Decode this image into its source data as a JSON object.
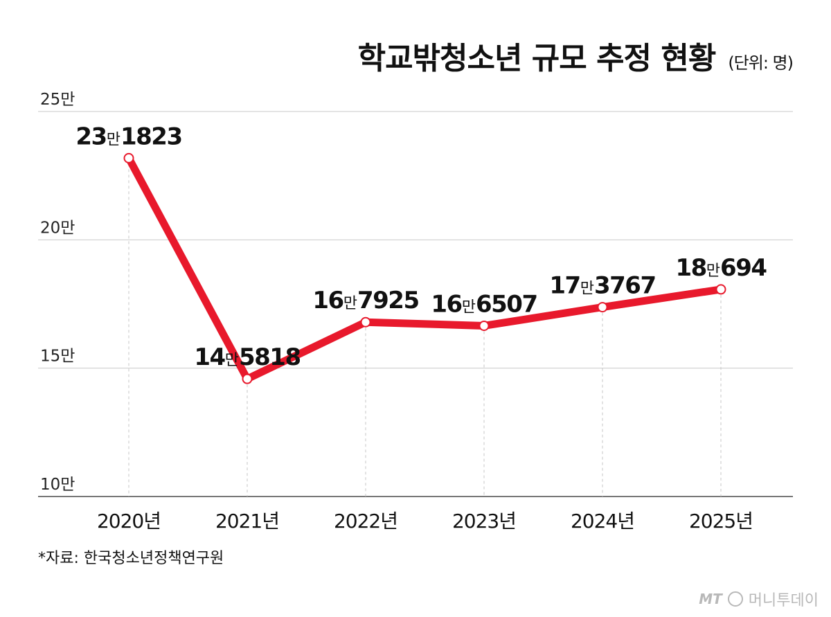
{
  "title": "학교밖청소년 규모 추정 현황",
  "unit_note": "(단위: 명)",
  "source": "*자료: 한국청소년정책연구원",
  "logo": {
    "mark": "MT",
    "name": "머니투데이"
  },
  "chart_data": {
    "type": "line",
    "title": "학교밖청소년 규모 추정 현황",
    "categories": [
      "2020년",
      "2021년",
      "2022년",
      "2023년",
      "2024년",
      "2025년"
    ],
    "values": [
      231823,
      145818,
      167925,
      166507,
      173767,
      180694
    ],
    "data_labels": [
      {
        "num1": "23",
        "unit": "만",
        "num2": "1823"
      },
      {
        "num1": "14",
        "unit": "만",
        "num2": "5818"
      },
      {
        "num1": "16",
        "unit": "만",
        "num2": "7925"
      },
      {
        "num1": "16",
        "unit": "만",
        "num2": "6507"
      },
      {
        "num1": "17",
        "unit": "만",
        "num2": "3767"
      },
      {
        "num1": "18",
        "unit": "만",
        "num2": "694"
      }
    ],
    "ylim": [
      100000,
      250000
    ],
    "yticks": [
      100000,
      150000,
      200000,
      250000
    ],
    "ytick_labels": [
      "10만",
      "15만",
      "20만",
      "25만"
    ],
    "line_color": "#e8192c",
    "grid": true
  }
}
